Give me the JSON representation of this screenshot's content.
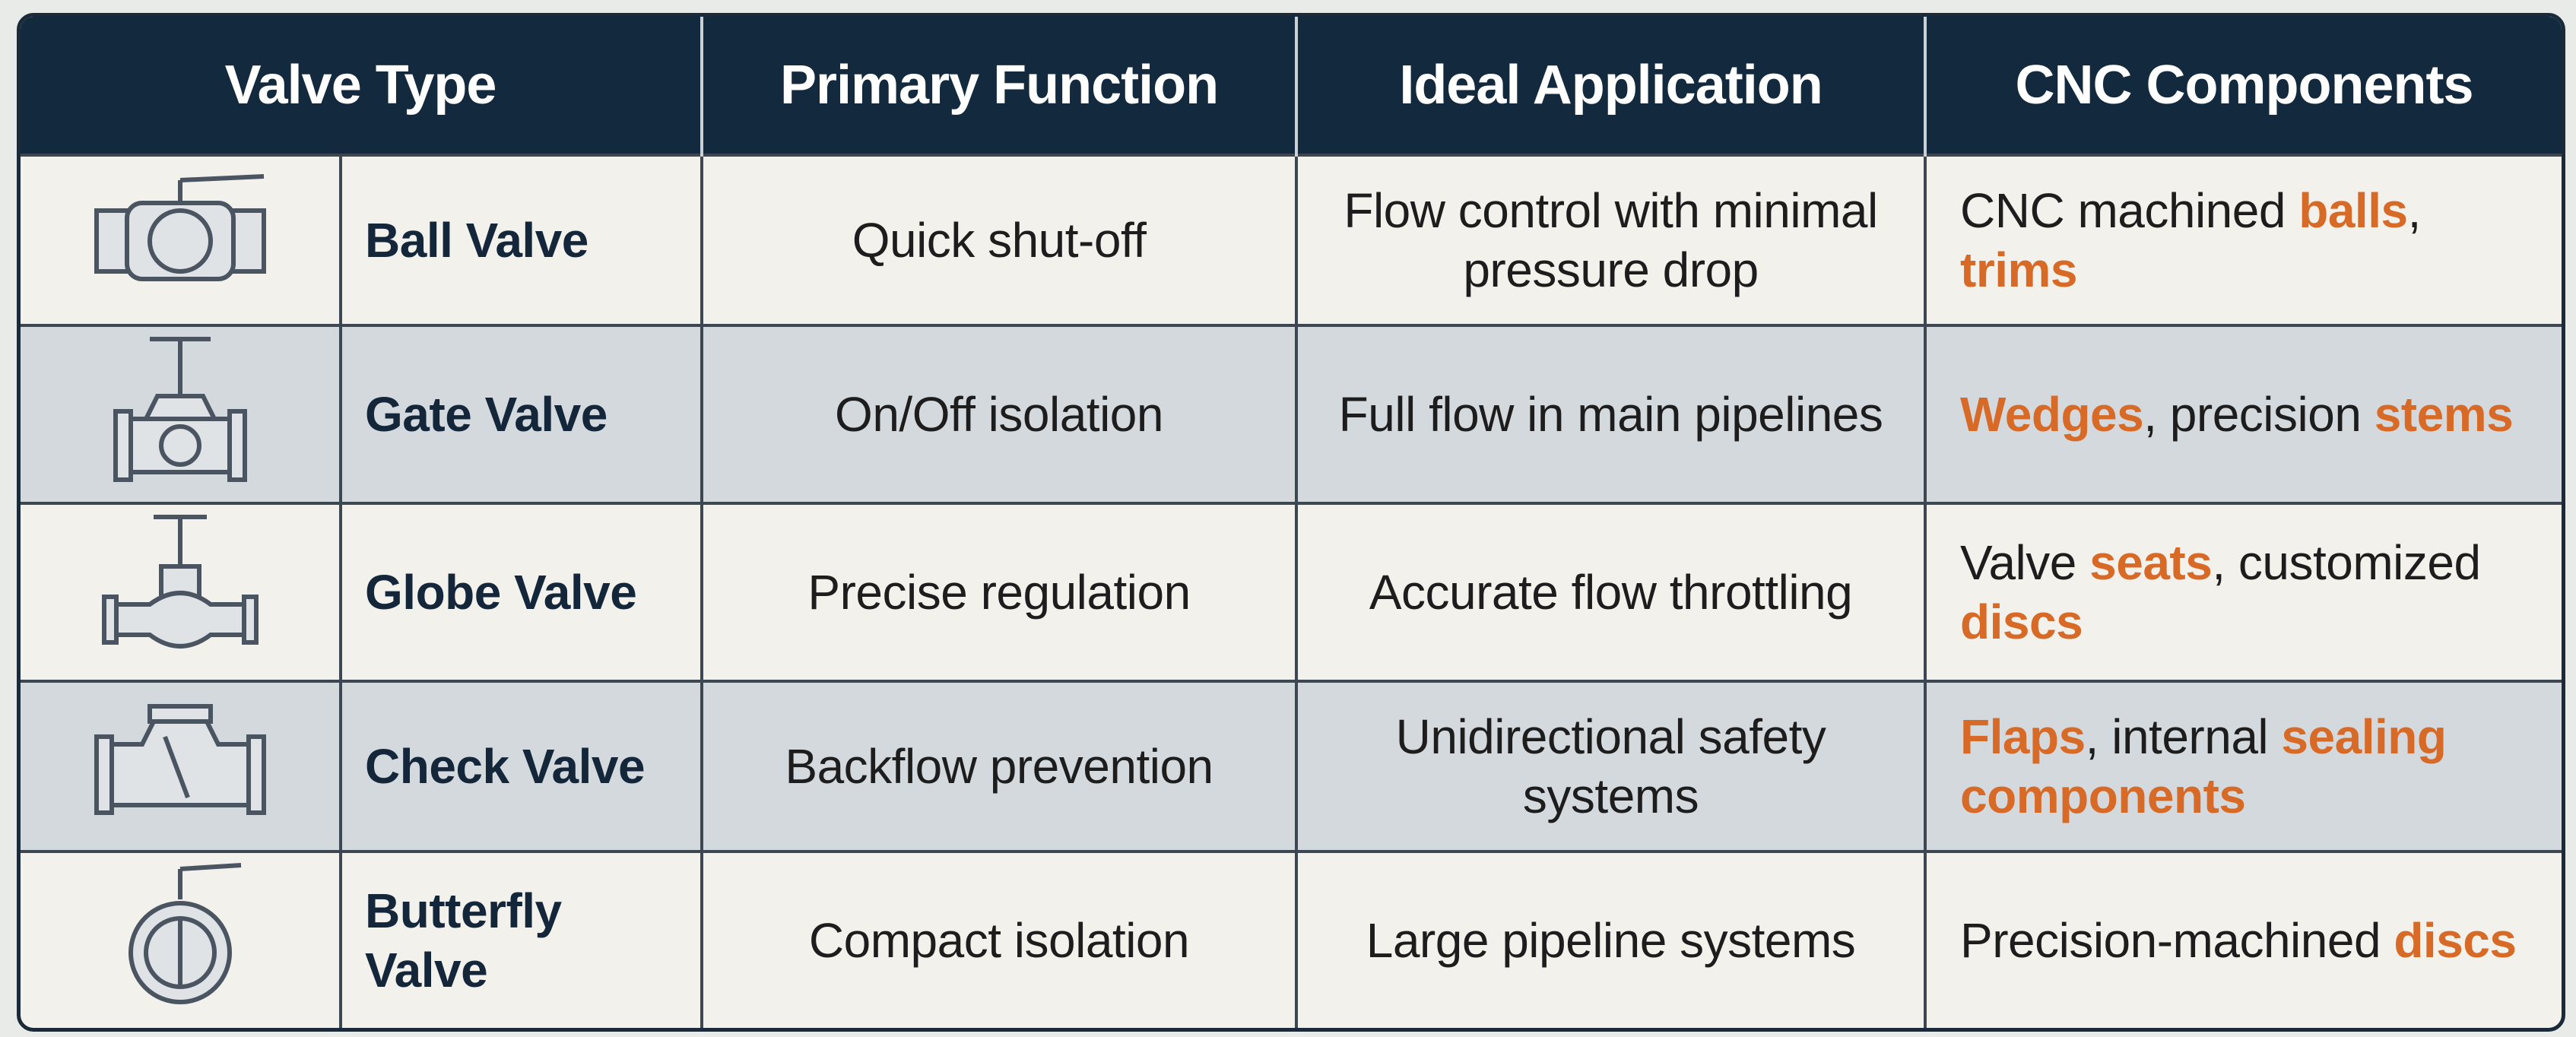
{
  "table": {
    "header": [
      "Valve Type",
      "Primary Function",
      "Ideal Application",
      "CNC Components"
    ],
    "rows": [
      {
        "name": "Ball Valve",
        "function": "Quick shut-off",
        "application": "Flow control with minimal pressure drop",
        "components": [
          {
            "text": "CNC machined "
          },
          {
            "text": "balls",
            "highlight": true
          },
          {
            "text": ", "
          },
          {
            "text": "trims",
            "highlight": true
          }
        ]
      },
      {
        "name": "Gate Valve",
        "function": "On/Off isolation",
        "application": "Full flow in main pipelines",
        "components": [
          {
            "text": "Wedges",
            "highlight": true
          },
          {
            "text": ", precision "
          },
          {
            "text": "stems",
            "highlight": true
          }
        ]
      },
      {
        "name": "Globe Valve",
        "function": "Precise regulation",
        "application": "Accurate flow throttling",
        "components": [
          {
            "text": "Valve "
          },
          {
            "text": "seats",
            "highlight": true
          },
          {
            "text": ", customized "
          },
          {
            "text": "discs",
            "highlight": true
          }
        ]
      },
      {
        "name": "Check Valve",
        "function": "Backflow prevention",
        "application": "Unidirectional safety systems",
        "components": [
          {
            "text": "Flaps",
            "highlight": true
          },
          {
            "text": ", internal "
          },
          {
            "text": "sealing components",
            "highlight": true
          }
        ]
      },
      {
        "name": "Butterfly Valve",
        "function": "Compact isolation",
        "application": "Large pipeline systems",
        "components": [
          {
            "text": "Precision-machined "
          },
          {
            "text": "discs",
            "highlight": true
          }
        ]
      }
    ]
  }
}
